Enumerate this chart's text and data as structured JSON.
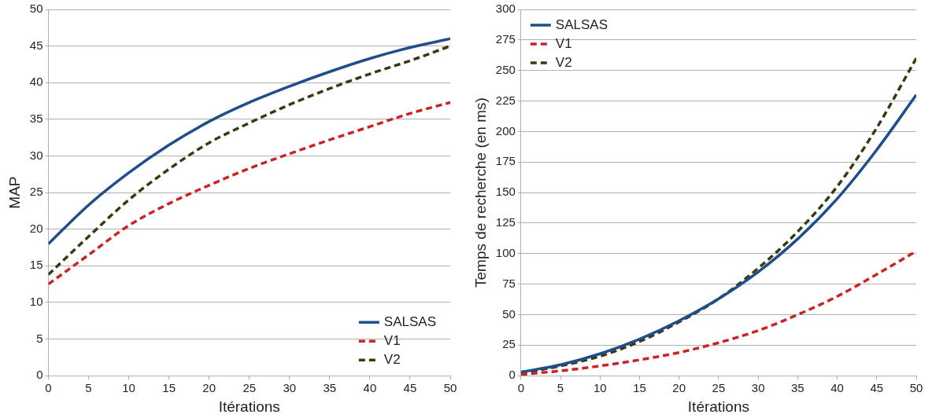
{
  "chart_data": [
    {
      "type": "line",
      "xlabel": "Itérations",
      "ylabel": "MAP",
      "x": [
        0,
        5,
        10,
        15,
        20,
        25,
        30,
        35,
        40,
        45,
        50
      ],
      "xlim": [
        0,
        50
      ],
      "xticks": [
        0,
        5,
        10,
        15,
        20,
        25,
        30,
        35,
        40,
        45,
        50
      ],
      "ylim": [
        0,
        50
      ],
      "yticks": [
        0,
        5,
        10,
        15,
        20,
        25,
        30,
        35,
        40,
        45,
        50
      ],
      "grid": "y",
      "legend": "bottom right",
      "marker": "none",
      "series": [
        {
          "name": "SALSAS",
          "color": "#1f4e8c",
          "line_style": "solid",
          "values": [
            18,
            23.3,
            27.7,
            31.5,
            34.7,
            37.3,
            39.5,
            41.5,
            43.3,
            44.8,
            46
          ]
        },
        {
          "name": "V1",
          "color": "#cc2222",
          "line_style": "dashed",
          "values": [
            12.5,
            16.5,
            20.5,
            23.5,
            26,
            28.3,
            30.3,
            32.2,
            34,
            35.8,
            37.3
          ]
        },
        {
          "name": "V2",
          "color": "#3a3a10",
          "line_style": "dashed",
          "values": [
            13.8,
            19,
            24,
            28.2,
            31.8,
            34.5,
            37,
            39.2,
            41.2,
            43,
            45
          ]
        }
      ]
    },
    {
      "type": "line",
      "xlabel": "Itérations",
      "ylabel": "Temps de recherche (en ms)",
      "x": [
        0,
        5,
        10,
        15,
        20,
        25,
        30,
        35,
        40,
        45,
        50
      ],
      "xlim": [
        0,
        50
      ],
      "xticks": [
        0,
        5,
        10,
        15,
        20,
        25,
        30,
        35,
        40,
        45,
        50
      ],
      "ylim": [
        0,
        300
      ],
      "yticks": [
        0,
        25,
        50,
        75,
        100,
        125,
        150,
        175,
        200,
        225,
        250,
        275,
        300
      ],
      "grid": "y",
      "legend": "top left",
      "marker": "none",
      "series": [
        {
          "name": "SALSAS",
          "color": "#1f4e8c",
          "line_style": "solid",
          "values": [
            3,
            9,
            18,
            30,
            45,
            63,
            85,
            112,
            145,
            185,
            230
          ]
        },
        {
          "name": "V1",
          "color": "#cc2222",
          "line_style": "dashed",
          "values": [
            1,
            4,
            8,
            13,
            19,
            27,
            37,
            50,
            65,
            83,
            102
          ]
        },
        {
          "name": "V2",
          "color": "#3a3a10",
          "line_style": "dashed",
          "values": [
            2,
            8,
            16,
            28,
            44,
            63,
            88,
            118,
            155,
            203,
            260
          ]
        }
      ]
    }
  ]
}
